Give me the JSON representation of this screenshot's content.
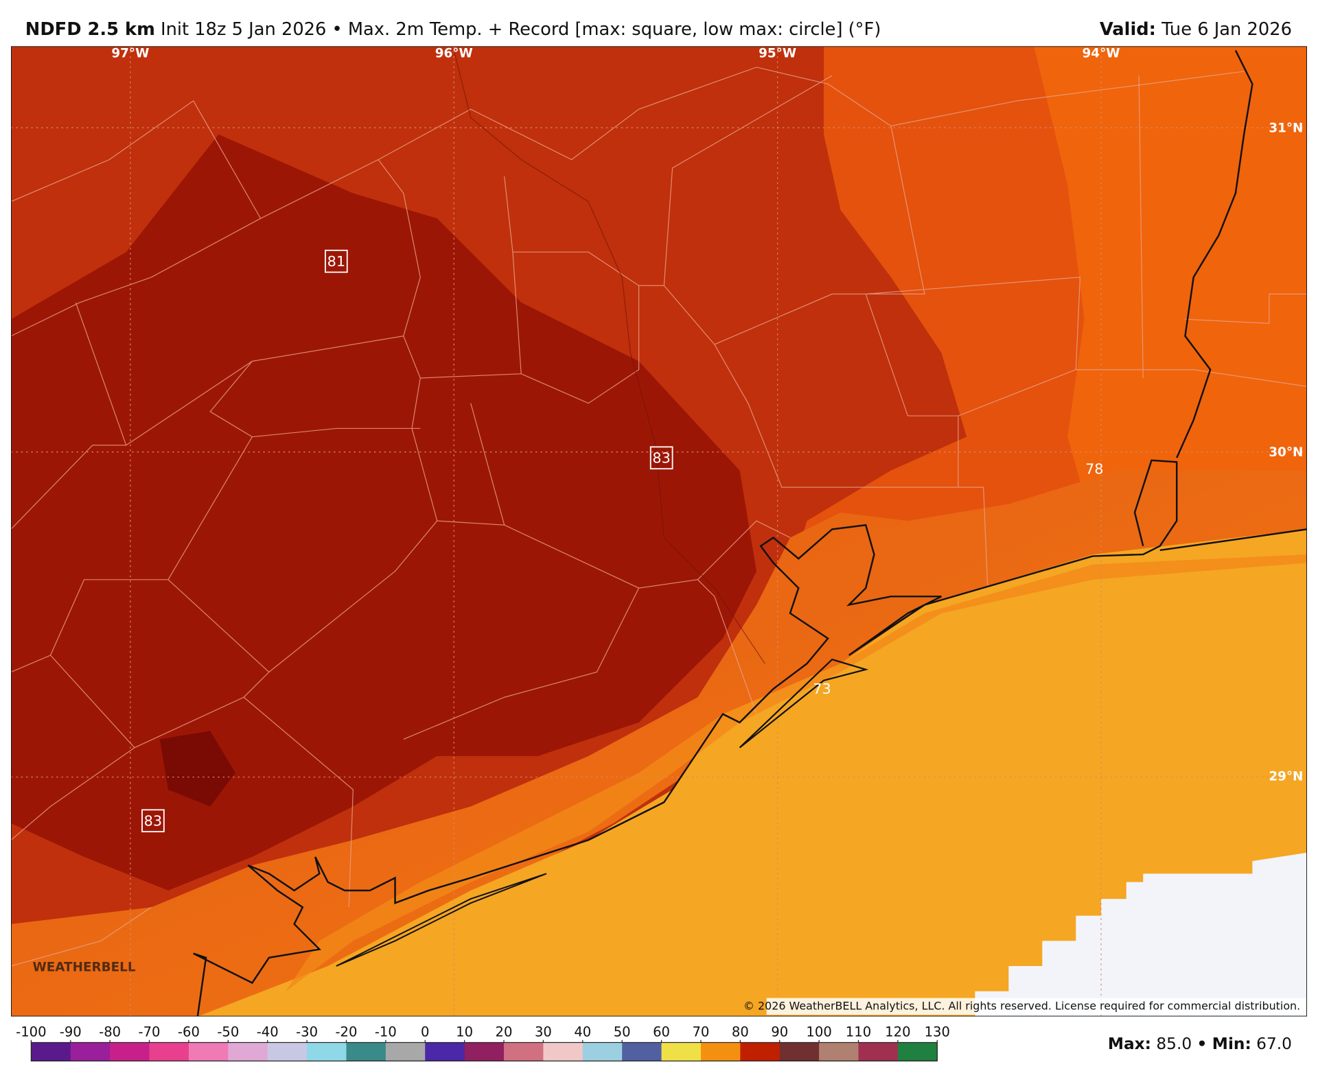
{
  "header": {
    "model": "NDFD 2.5 km",
    "description": "Init 18z 5 Jan 2026 • Max. 2m Temp. + Record [max: square, low max: circle] (°F)",
    "valid_label": "Valid:",
    "valid_date": "Tue 6 Jan 2026"
  },
  "map": {
    "longitudes": [
      "97°W",
      "96°W",
      "95°W",
      "94°W"
    ],
    "latitudes": [
      "31°N",
      "30°N",
      "29°N"
    ],
    "records": [
      {
        "type": "square",
        "label": "81"
      },
      {
        "type": "square",
        "label": "83"
      },
      {
        "type": "square",
        "label": "83"
      },
      {
        "type": "circle",
        "label": "78"
      },
      {
        "type": "circle",
        "label": "73"
      }
    ],
    "copyright": "© 2026 WeatherBELL Analytics, LLC. All rights reserved. License required for commercial distribution.",
    "watermark": "WEATHERBELL"
  },
  "colorbar": {
    "ticks": [
      -100,
      -90,
      -80,
      -70,
      -60,
      -50,
      -40,
      -30,
      -20,
      -10,
      0,
      10,
      20,
      30,
      40,
      50,
      60,
      70,
      80,
      90,
      100,
      110,
      120,
      130
    ],
    "colors": [
      "#5a1a8c",
      "#9a1f9a",
      "#c8208a",
      "#e8408e",
      "#f07ab4",
      "#e0a8d4",
      "#c8c8e4",
      "#8ed8e8",
      "#3a8a8a",
      "#a8a8a8",
      "#4a28a8",
      "#902060",
      "#d07080",
      "#f0c8c8",
      "#9cd0e0",
      "#5060a0",
      "#f0e048",
      "#f49010",
      "#c02000",
      "#703030",
      "#b08070",
      "#a03050",
      "#208040"
    ]
  },
  "stats": {
    "max_label": "Max:",
    "max": "85.0",
    "separator": "•",
    "min_label": "Min:",
    "min": "67.0"
  }
}
